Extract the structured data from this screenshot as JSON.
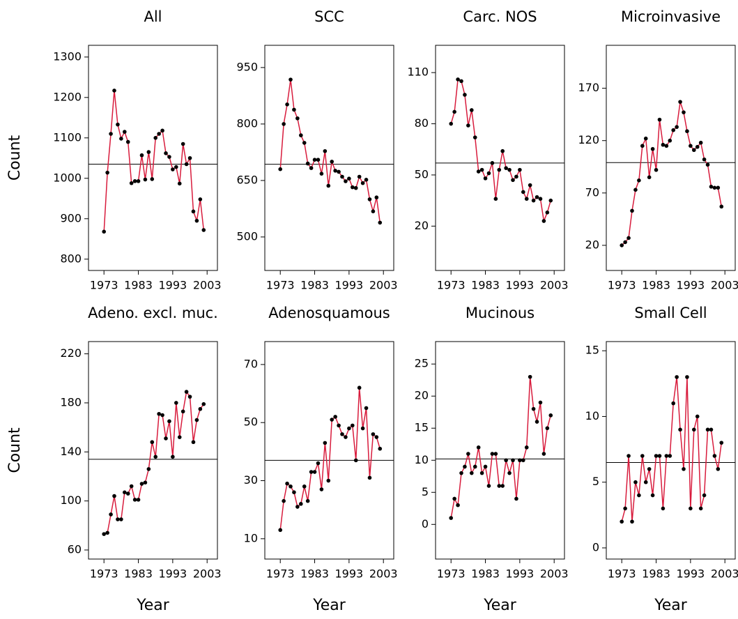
{
  "chart_data": [
    {
      "type": "line",
      "title": "All",
      "ylabel": "Count",
      "color": "#d81b3c",
      "x": [
        1973,
        1974,
        1975,
        1976,
        1977,
        1978,
        1979,
        1980,
        1981,
        1982,
        1983,
        1984,
        1985,
        1986,
        1987,
        1988,
        1989,
        1990,
        1991,
        1992,
        1993,
        1994,
        1995,
        1996,
        1997,
        1998,
        1999,
        2000,
        2001,
        2002
      ],
      "values": [
        868,
        1014,
        1110,
        1217,
        1133,
        1098,
        1115,
        1090,
        988,
        993,
        993,
        1057,
        997,
        1065,
        998,
        1100,
        1110,
        1118,
        1062,
        1053,
        1022,
        1028,
        987,
        1085,
        1035,
        1050,
        918,
        895,
        948,
        872
      ],
      "hline": 1035,
      "xlim": [
        1968.5,
        2006
      ],
      "xticks": [
        1973,
        1983,
        1993,
        2003
      ],
      "ylim": [
        772,
        1329
      ],
      "yticks": [
        800,
        900,
        1000,
        1100,
        1200,
        1300
      ]
    },
    {
      "type": "line",
      "title": "SCC",
      "color": "#d81b3c",
      "x": [
        1973,
        1974,
        1975,
        1976,
        1977,
        1978,
        1979,
        1980,
        1981,
        1982,
        1983,
        1984,
        1985,
        1986,
        1987,
        1988,
        1989,
        1990,
        1991,
        1992,
        1993,
        1994,
        1995,
        1996,
        1997,
        1998,
        1999,
        2000,
        2001,
        2002
      ],
      "values": [
        680,
        800,
        852,
        918,
        838,
        815,
        770,
        750,
        695,
        683,
        705,
        705,
        668,
        728,
        636,
        700,
        676,
        673,
        660,
        648,
        655,
        632,
        630,
        660,
        643,
        652,
        600,
        568,
        605,
        538
      ],
      "hline": 693,
      "xlim": [
        1968.5,
        2006
      ],
      "xticks": [
        1973,
        1983,
        1993,
        2003
      ],
      "ylim": [
        411,
        1009
      ],
      "yticks": [
        500,
        650,
        800,
        950
      ]
    },
    {
      "type": "line",
      "title": "Carc. NOS",
      "color": "#d81b3c",
      "x": [
        1973,
        1974,
        1975,
        1976,
        1977,
        1978,
        1979,
        1980,
        1981,
        1982,
        1983,
        1984,
        1985,
        1986,
        1987,
        1988,
        1989,
        1990,
        1991,
        1992,
        1993,
        1994,
        1995,
        1996,
        1997,
        1998,
        1999,
        2000,
        2001,
        2002
      ],
      "values": [
        80,
        87,
        106,
        105,
        97,
        79,
        88,
        72,
        52,
        53,
        48,
        51,
        57,
        36,
        53,
        64,
        54,
        53,
        47,
        49,
        53,
        40,
        36,
        44,
        35,
        37,
        36,
        23,
        28,
        35
      ],
      "hline": 57,
      "xlim": [
        1968.5,
        2006
      ],
      "xticks": [
        1973,
        1983,
        1993,
        2003
      ],
      "ylim": [
        -6,
        126
      ],
      "yticks": [
        20,
        50,
        80,
        110
      ]
    },
    {
      "type": "line",
      "title": "Microinvasive",
      "color": "#d81b3c",
      "x": [
        1973,
        1974,
        1975,
        1976,
        1977,
        1978,
        1979,
        1980,
        1981,
        1982,
        1983,
        1984,
        1985,
        1986,
        1987,
        1988,
        1989,
        1990,
        1991,
        1992,
        1993,
        1994,
        1995,
        1996,
        1997,
        1998,
        1999,
        2000,
        2001,
        2002
      ],
      "values": [
        20,
        23,
        27,
        53,
        73,
        82,
        115,
        122,
        85,
        112,
        92,
        140,
        116,
        115,
        120,
        130,
        133,
        157,
        147,
        129,
        115,
        111,
        114,
        118,
        102,
        97,
        76,
        75,
        75,
        57
      ],
      "hline": 99,
      "xlim": [
        1968.5,
        2006
      ],
      "xticks": [
        1973,
        1983,
        1993,
        2003
      ],
      "ylim": [
        -4,
        211
      ],
      "yticks": [
        20,
        70,
        120,
        170
      ]
    },
    {
      "type": "line",
      "title": "Adeno. excl. muc.",
      "ylabel": "Count",
      "xlabel": "Year",
      "color": "#d81b3c",
      "x": [
        1973,
        1974,
        1975,
        1976,
        1977,
        1978,
        1979,
        1980,
        1981,
        1982,
        1983,
        1984,
        1985,
        1986,
        1987,
        1988,
        1989,
        1990,
        1991,
        1992,
        1993,
        1994,
        1995,
        1996,
        1997,
        1998,
        1999,
        2000,
        2001,
        2002
      ],
      "values": [
        73,
        74,
        89,
        104,
        85,
        85,
        107,
        106,
        112,
        101,
        101,
        114,
        115,
        126,
        148,
        136,
        171,
        170,
        151,
        165,
        136,
        180,
        152,
        173,
        189,
        185,
        148,
        166,
        175,
        179
      ],
      "hline": 134,
      "xlim": [
        1968.5,
        2006
      ],
      "xticks": [
        1973,
        1983,
        1993,
        2003
      ],
      "ylim": [
        52.6,
        230
      ],
      "yticks": [
        60,
        100,
        140,
        180,
        220
      ]
    },
    {
      "type": "line",
      "title": "Adenosquamous",
      "xlabel": "Year",
      "color": "#d81b3c",
      "x": [
        1973,
        1974,
        1975,
        1976,
        1977,
        1978,
        1979,
        1980,
        1981,
        1982,
        1983,
        1984,
        1985,
        1986,
        1987,
        1988,
        1989,
        1990,
        1991,
        1992,
        1993,
        1994,
        1995,
        1996,
        1997,
        1998,
        1999,
        2000,
        2001,
        2002
      ],
      "values": [
        13,
        23,
        29,
        28,
        26,
        21,
        22,
        28,
        23,
        33,
        33,
        36,
        27,
        43,
        30,
        51,
        52,
        49,
        46,
        45,
        48,
        49,
        37,
        62,
        48,
        55,
        31,
        46,
        45,
        41
      ],
      "hline": 37,
      "xlim": [
        1968.5,
        2006
      ],
      "xticks": [
        1973,
        1983,
        1993,
        2003
      ],
      "ylim": [
        3,
        77.9
      ],
      "yticks": [
        10,
        30,
        50,
        70
      ]
    },
    {
      "type": "line",
      "title": "Mucinous",
      "xlabel": "Year",
      "color": "#d81b3c",
      "x": [
        1973,
        1974,
        1975,
        1976,
        1977,
        1978,
        1979,
        1980,
        1981,
        1982,
        1983,
        1984,
        1985,
        1986,
        1987,
        1988,
        1989,
        1990,
        1991,
        1992,
        1993,
        1994,
        1995,
        1996,
        1997,
        1998,
        1999,
        2000,
        2001,
        2002
      ],
      "values": [
        1,
        4,
        3,
        8,
        9,
        11,
        8,
        9,
        12,
        8,
        9,
        6,
        11,
        11,
        6,
        6,
        10,
        8,
        10,
        4,
        10,
        10,
        12,
        23,
        18,
        16,
        19,
        11,
        15,
        17
      ],
      "hline": 10.2,
      "xlim": [
        1968.5,
        2006
      ],
      "xticks": [
        1973,
        1983,
        1993,
        2003
      ],
      "ylim": [
        -5.4,
        28.5
      ],
      "yticks": [
        0,
        5,
        10,
        15,
        20,
        25
      ]
    },
    {
      "type": "line",
      "title": "Small Cell",
      "xlabel": "Year",
      "color": "#d81b3c",
      "x": [
        1973,
        1974,
        1975,
        1976,
        1977,
        1978,
        1979,
        1980,
        1981,
        1982,
        1983,
        1984,
        1985,
        1986,
        1987,
        1988,
        1989,
        1990,
        1991,
        1992,
        1993,
        1994,
        1995,
        1996,
        1997,
        1998,
        1999,
        2000,
        2001,
        2002
      ],
      "values": [
        2,
        3,
        7,
        2,
        5,
        4,
        7,
        5,
        6,
        4,
        7,
        7,
        3,
        7,
        7,
        11,
        13,
        9,
        6,
        13,
        3,
        9,
        10,
        3,
        4,
        9,
        9,
        7,
        6,
        8
      ],
      "hline": 6.5,
      "xlim": [
        1968.5,
        2006
      ],
      "xticks": [
        1973,
        1983,
        1993,
        2003
      ],
      "ylim": [
        -0.85,
        15.7
      ],
      "yticks": [
        0,
        5,
        10,
        15
      ]
    }
  ]
}
